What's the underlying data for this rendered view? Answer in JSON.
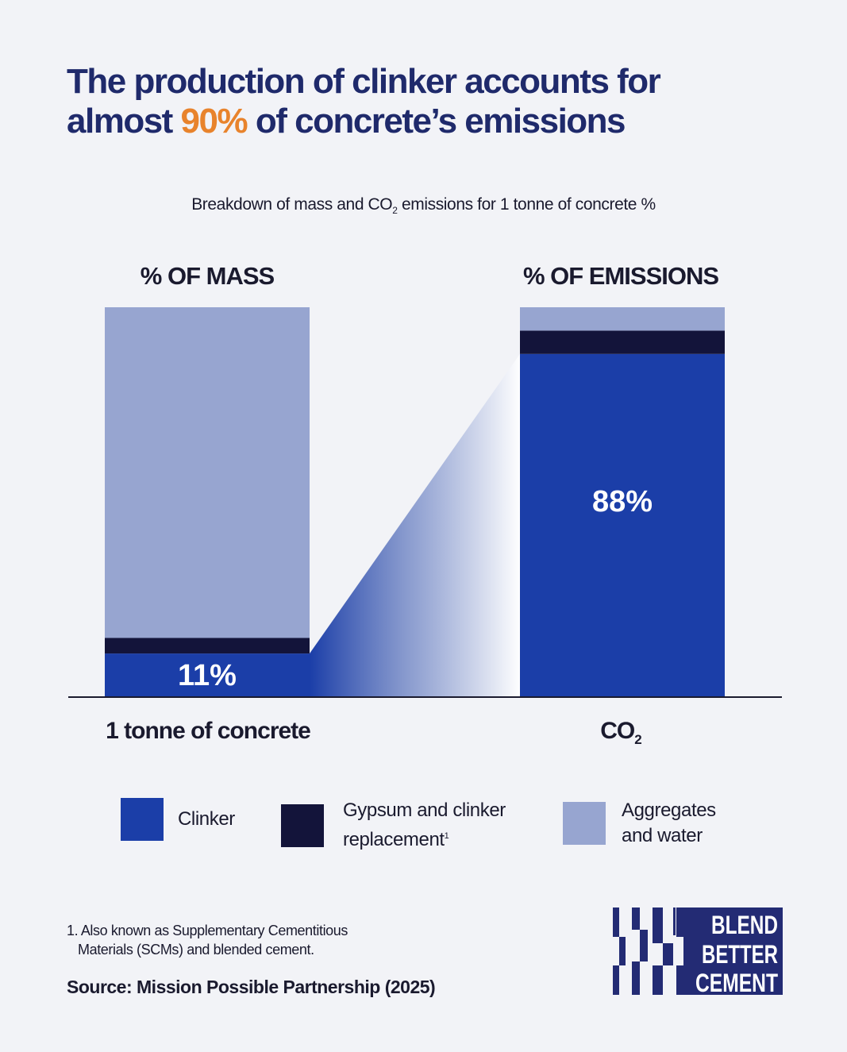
{
  "title": {
    "line1": "The production of clinker accounts for",
    "line2_before": "almost ",
    "line2_highlight": "90%",
    "line2_after": " of concrete’s emissions"
  },
  "subtitle": {
    "before": "Breakdown of mass and CO",
    "sub": "2",
    "after": " emissions for 1 tonne of concrete %"
  },
  "colors": {
    "clinker": "#1b3ea8",
    "gypsum": "#13143a",
    "aggregates": "#97a5d0",
    "highlight": "#e8832c",
    "title": "#1f2a6b"
  },
  "chart_data": {
    "type": "bar",
    "stacked": true,
    "categories": [
      "1 tonne of concrete",
      "CO2"
    ],
    "column_headers": [
      "% OF MASS",
      "% OF EMISSIONS"
    ],
    "ylim": [
      0,
      100
    ],
    "series": [
      {
        "name": "Clinker",
        "values": [
          11,
          88
        ],
        "data_labels": [
          "11%",
          "88%"
        ]
      },
      {
        "name": "Gypsum and clinker replacement",
        "values": [
          4,
          6
        ]
      },
      {
        "name": "Aggregates and water",
        "values": [
          85,
          6
        ]
      }
    ]
  },
  "category_labels": {
    "left": "1 tonne of concrete",
    "right_main": "CO",
    "right_sub": "2"
  },
  "legend": {
    "clinker": "Clinker",
    "gypsum_line1": "Gypsum and clinker",
    "gypsum_line2": "replacement",
    "gypsum_sup": "1",
    "aggregates_line1": "Aggregates",
    "aggregates_line2": "and water"
  },
  "footnote": {
    "line1": "1. Also known as Supplementary Cementitious",
    "line2": "Materials (SCMs) and blended cement."
  },
  "source": "Source: Mission Possible Partnership (2025)",
  "logo": {
    "line1": "BLEND",
    "line2": "BETTER",
    "line3": "CEMENT"
  }
}
